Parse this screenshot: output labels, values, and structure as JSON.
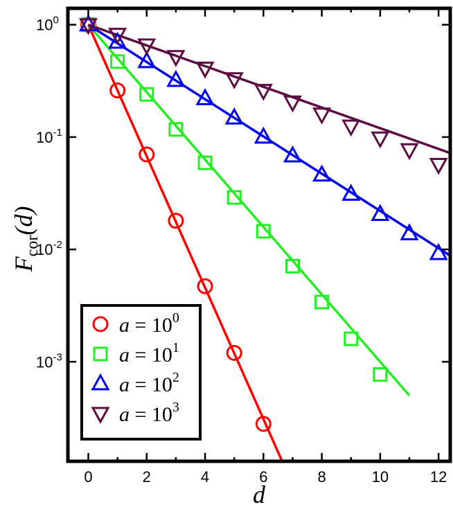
{
  "chart_data": {
    "type": "scatter",
    "xlabel": "d",
    "ylabel": {
      "main": "F",
      "sub": "cor",
      "arg": "(d)"
    },
    "x_scale": "linear",
    "y_scale": "log",
    "xlim": [
      -0.7,
      12.4
    ],
    "ylim": [
      0.00013,
      1.4
    ],
    "x_ticks": [
      "0",
      "2",
      "4",
      "6",
      "8",
      "10",
      "12"
    ],
    "x_tick_values": [
      0,
      2,
      4,
      6,
      8,
      10,
      12
    ],
    "y_tick_values": [
      1,
      0.1,
      0.01,
      0.001
    ],
    "y_ticks": [
      {
        "base": "10",
        "exp": "0"
      },
      {
        "base": "10",
        "exp": "-1"
      },
      {
        "base": "10",
        "exp": "-2"
      },
      {
        "base": "10",
        "exp": "-3"
      }
    ],
    "grid": false,
    "legend_position": "bottom-left",
    "series": [
      {
        "name": "a = 10^0",
        "legend": {
          "prefix": "a",
          "eq": " = 10",
          "exp": "0"
        },
        "color": "#ff0000",
        "marker": "circle",
        "points": [
          [
            0,
            1
          ],
          [
            1,
            0.26
          ],
          [
            2,
            0.07
          ],
          [
            3,
            0.018
          ],
          [
            4,
            0.0047
          ],
          [
            5,
            0.0012
          ],
          [
            6,
            0.00028
          ]
        ],
        "fit": [
          [
            0,
            1
          ],
          [
            6.9,
            9.2e-05
          ]
        ]
      },
      {
        "name": "a = 10^1",
        "legend": {
          "prefix": "a",
          "eq": " = 10",
          "exp": "1"
        },
        "color": "#22ee22",
        "marker": "square",
        "points": [
          [
            0,
            1
          ],
          [
            1,
            0.47
          ],
          [
            2,
            0.24
          ],
          [
            3,
            0.117
          ],
          [
            4,
            0.059
          ],
          [
            5,
            0.029
          ],
          [
            6,
            0.0145
          ],
          [
            7,
            0.0071
          ],
          [
            8,
            0.0034
          ],
          [
            9,
            0.0016
          ],
          [
            10,
            0.00077
          ]
        ],
        "fit": [
          [
            0,
            1
          ],
          [
            11,
            0.0005
          ]
        ]
      },
      {
        "name": "a = 10^2",
        "legend": {
          "prefix": "a",
          "eq": " = 10",
          "exp": "2"
        },
        "color": "#0000ee",
        "marker": "triangle-up",
        "points": [
          [
            0,
            1
          ],
          [
            1,
            0.7
          ],
          [
            2,
            0.47
          ],
          [
            3,
            0.32
          ],
          [
            4,
            0.22
          ],
          [
            5,
            0.148
          ],
          [
            6,
            0.1
          ],
          [
            7,
            0.068
          ],
          [
            8,
            0.046
          ],
          [
            9,
            0.031
          ],
          [
            10,
            0.0205
          ],
          [
            11,
            0.0138
          ],
          [
            12,
            0.0092
          ]
        ],
        "fit": [
          [
            0,
            1
          ],
          [
            12.4,
            0.0088
          ]
        ]
      },
      {
        "name": "a = 10^3",
        "legend": {
          "prefix": "a",
          "eq": " = 10",
          "exp": "3"
        },
        "color": "#5c0c42",
        "marker": "triangle-down",
        "points": [
          [
            0,
            1
          ],
          [
            1,
            0.82
          ],
          [
            2,
            0.66
          ],
          [
            3,
            0.52
          ],
          [
            4,
            0.41
          ],
          [
            5,
            0.33
          ],
          [
            6,
            0.26
          ],
          [
            7,
            0.205
          ],
          [
            8,
            0.16
          ],
          [
            9,
            0.125
          ],
          [
            10,
            0.098
          ],
          [
            11,
            0.077
          ],
          [
            12,
            0.057
          ]
        ],
        "fit": [
          [
            0,
            1
          ],
          [
            12.4,
            0.072
          ]
        ]
      }
    ]
  }
}
